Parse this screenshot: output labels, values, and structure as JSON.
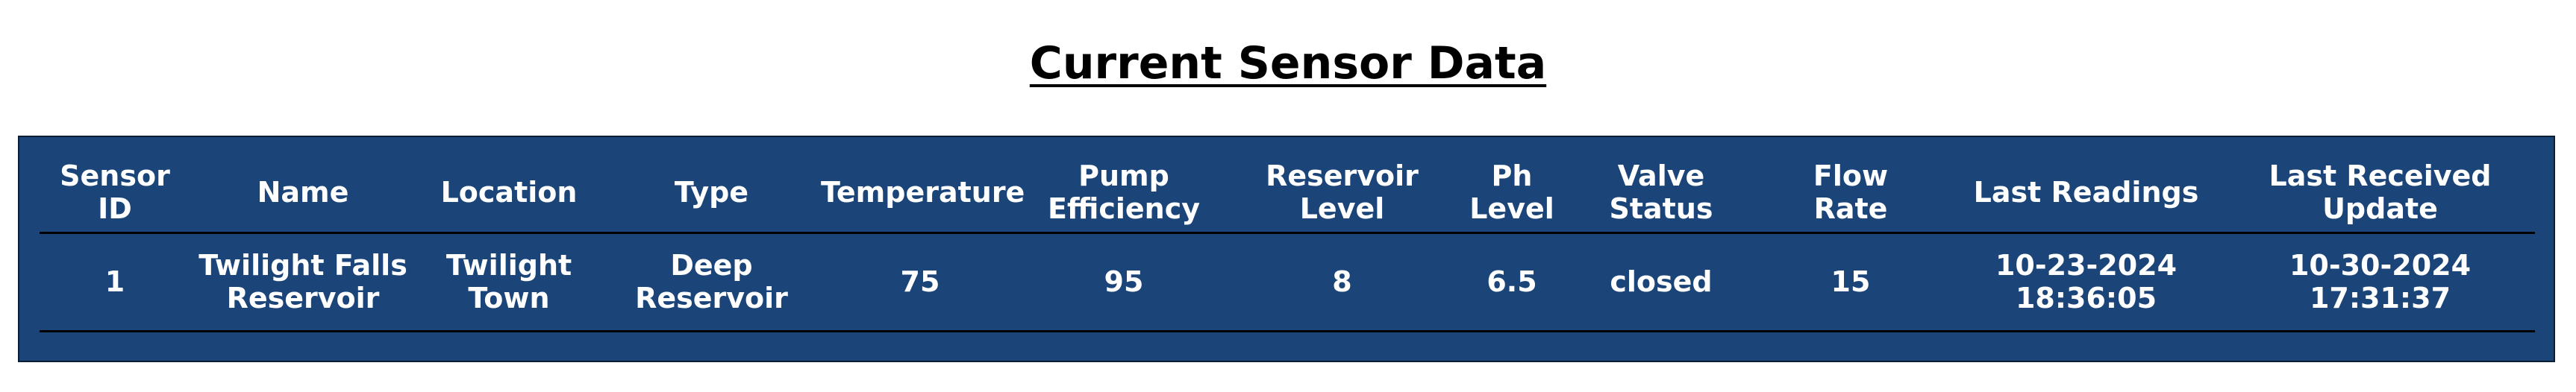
{
  "page": {
    "title": "Current Sensor Data"
  },
  "table": {
    "headers": [
      "Sensor ID",
      "Name",
      "Location",
      "Type",
      "Temperature",
      "Pump Efficiency",
      "Reservoir Level",
      "Ph Level",
      "Valve Status",
      "Flow Rate",
      "Last Readings",
      "Last Received Update"
    ],
    "rows": [
      {
        "cells": [
          "1",
          "Twilight Falls Reservoir",
          "Twilight Town",
          "Deep Reservoir",
          "75",
          "95",
          "8",
          "6.5",
          "closed",
          "15",
          "10-23-2024 18:36:05",
          "10-30-2024 17:31:37"
        ]
      }
    ]
  },
  "colors": {
    "panel_background": "#1b4479",
    "panel_border": "#0c1c33",
    "text_on_panel": "#ffffff",
    "row_divider": "#000000",
    "title_text": "#000000"
  }
}
